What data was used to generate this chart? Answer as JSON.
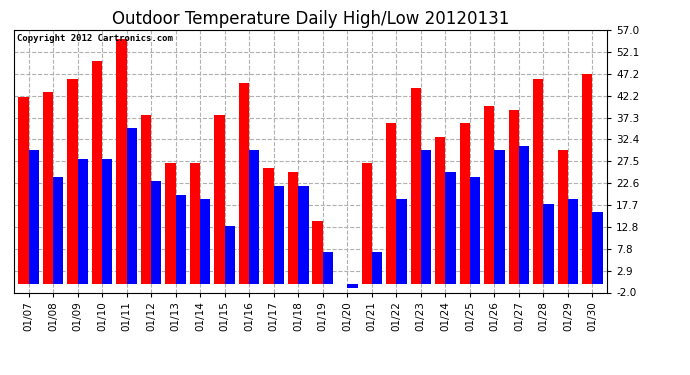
{
  "title": "Outdoor Temperature Daily High/Low 20120131",
  "copyright": "Copyright 2012 Cartronics.com",
  "dates": [
    "01/07",
    "01/08",
    "01/09",
    "01/10",
    "01/11",
    "01/12",
    "01/13",
    "01/14",
    "01/15",
    "01/16",
    "01/17",
    "01/18",
    "01/19",
    "01/20",
    "01/21",
    "01/22",
    "01/23",
    "01/24",
    "01/25",
    "01/26",
    "01/27",
    "01/28",
    "01/29",
    "01/30"
  ],
  "highs": [
    42,
    43,
    46,
    50,
    55,
    38,
    27,
    27,
    38,
    45,
    26,
    25,
    14,
    0,
    27,
    36,
    44,
    33,
    36,
    40,
    39,
    46,
    30,
    47
  ],
  "lows": [
    30,
    24,
    28,
    28,
    35,
    23,
    20,
    19,
    13,
    30,
    22,
    22,
    7,
    -1,
    7,
    19,
    30,
    25,
    24,
    30,
    31,
    18,
    19,
    16
  ],
  "bar_width": 0.42,
  "high_color": "#ff0000",
  "low_color": "#0000ff",
  "bg_color": "#ffffff",
  "plot_bg_color": "#ffffff",
  "grid_color": "#b0b0b0",
  "title_fontsize": 12,
  "tick_fontsize": 7.5,
  "ylim": [
    -2.0,
    57.0
  ],
  "yticks": [
    -2.0,
    2.9,
    7.8,
    12.8,
    17.7,
    22.6,
    27.5,
    32.4,
    37.3,
    42.2,
    47.2,
    52.1,
    57.0
  ],
  "ytick_labels": [
    "-2.0",
    "2.9",
    "7.8",
    "12.8",
    "17.7",
    "22.6",
    "27.5",
    "32.4",
    "37.3",
    "42.2",
    "47.2",
    "52.1",
    "57.0"
  ]
}
